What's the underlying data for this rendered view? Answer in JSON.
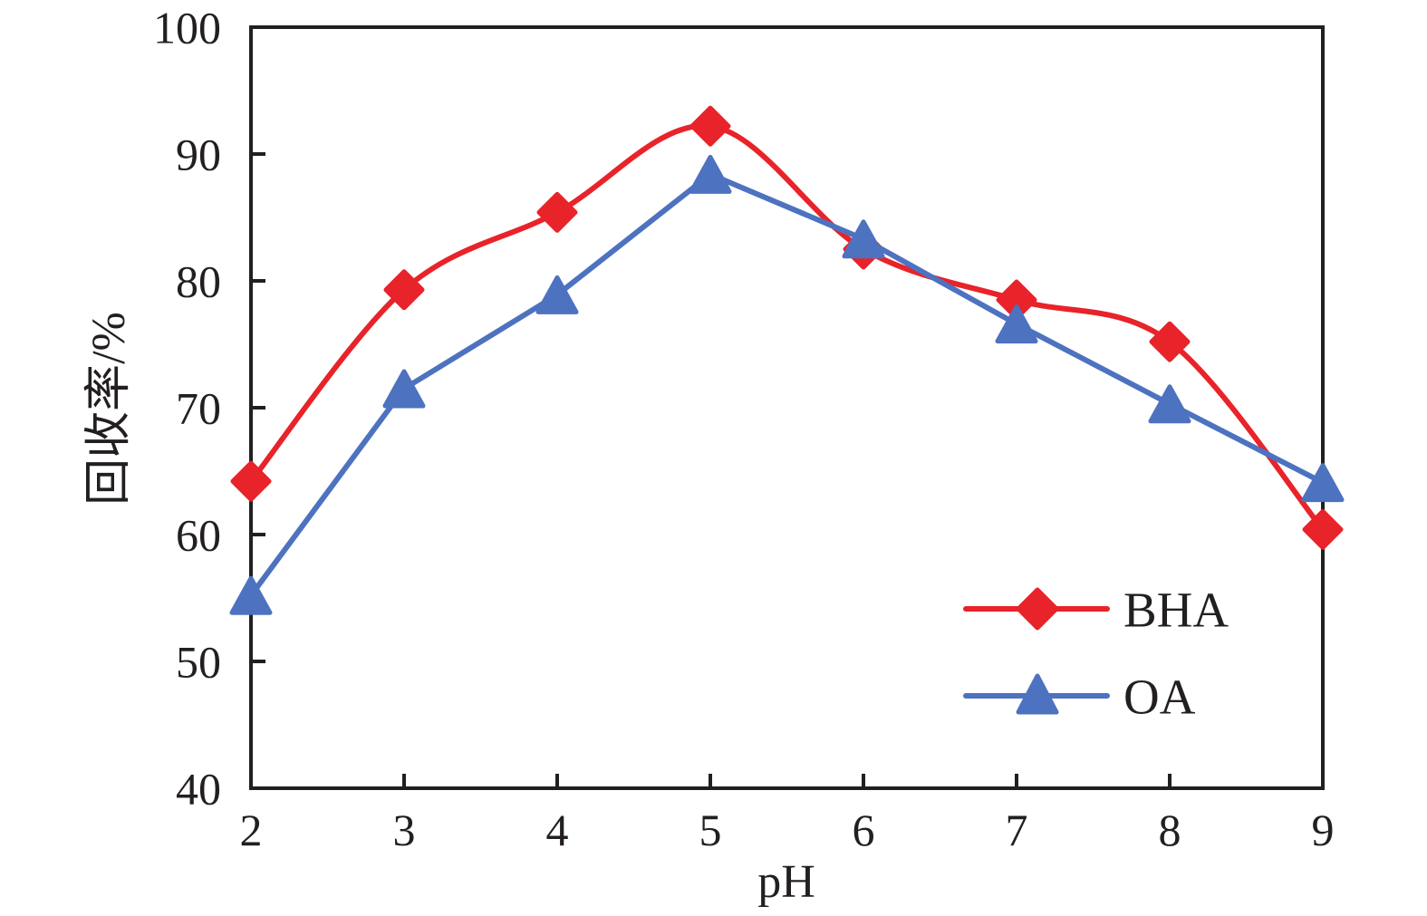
{
  "chart_data": {
    "type": "line",
    "title": "",
    "xlabel": "pH",
    "ylabel": "回收率/%",
    "x": [
      2,
      3,
      4,
      5,
      6,
      7,
      8,
      9
    ],
    "series": [
      {
        "name": "BHA",
        "marker": "diamond",
        "color": "#e8232a",
        "smooth": true,
        "values": [
          64.2,
          79.3,
          85.4,
          92.2,
          82.5,
          78.5,
          75.2,
          60.4
        ]
      },
      {
        "name": "OA",
        "marker": "triangle",
        "color": "#4d72bf",
        "smooth": false,
        "values": [
          55.2,
          71.5,
          78.9,
          88.4,
          83.3,
          76.6,
          70.3,
          64.1
        ]
      }
    ],
    "xlim": [
      2,
      9
    ],
    "ylim": [
      40,
      100
    ],
    "x_tick_step": 1,
    "y_tick_step": 10,
    "grid": false,
    "legend_position": "lower-right",
    "axis_color": "#231f20",
    "text_color": "#231f20",
    "background_color": "#ffffff"
  },
  "legend": {
    "items": [
      {
        "label": "BHA"
      },
      {
        "label": "OA"
      }
    ]
  }
}
